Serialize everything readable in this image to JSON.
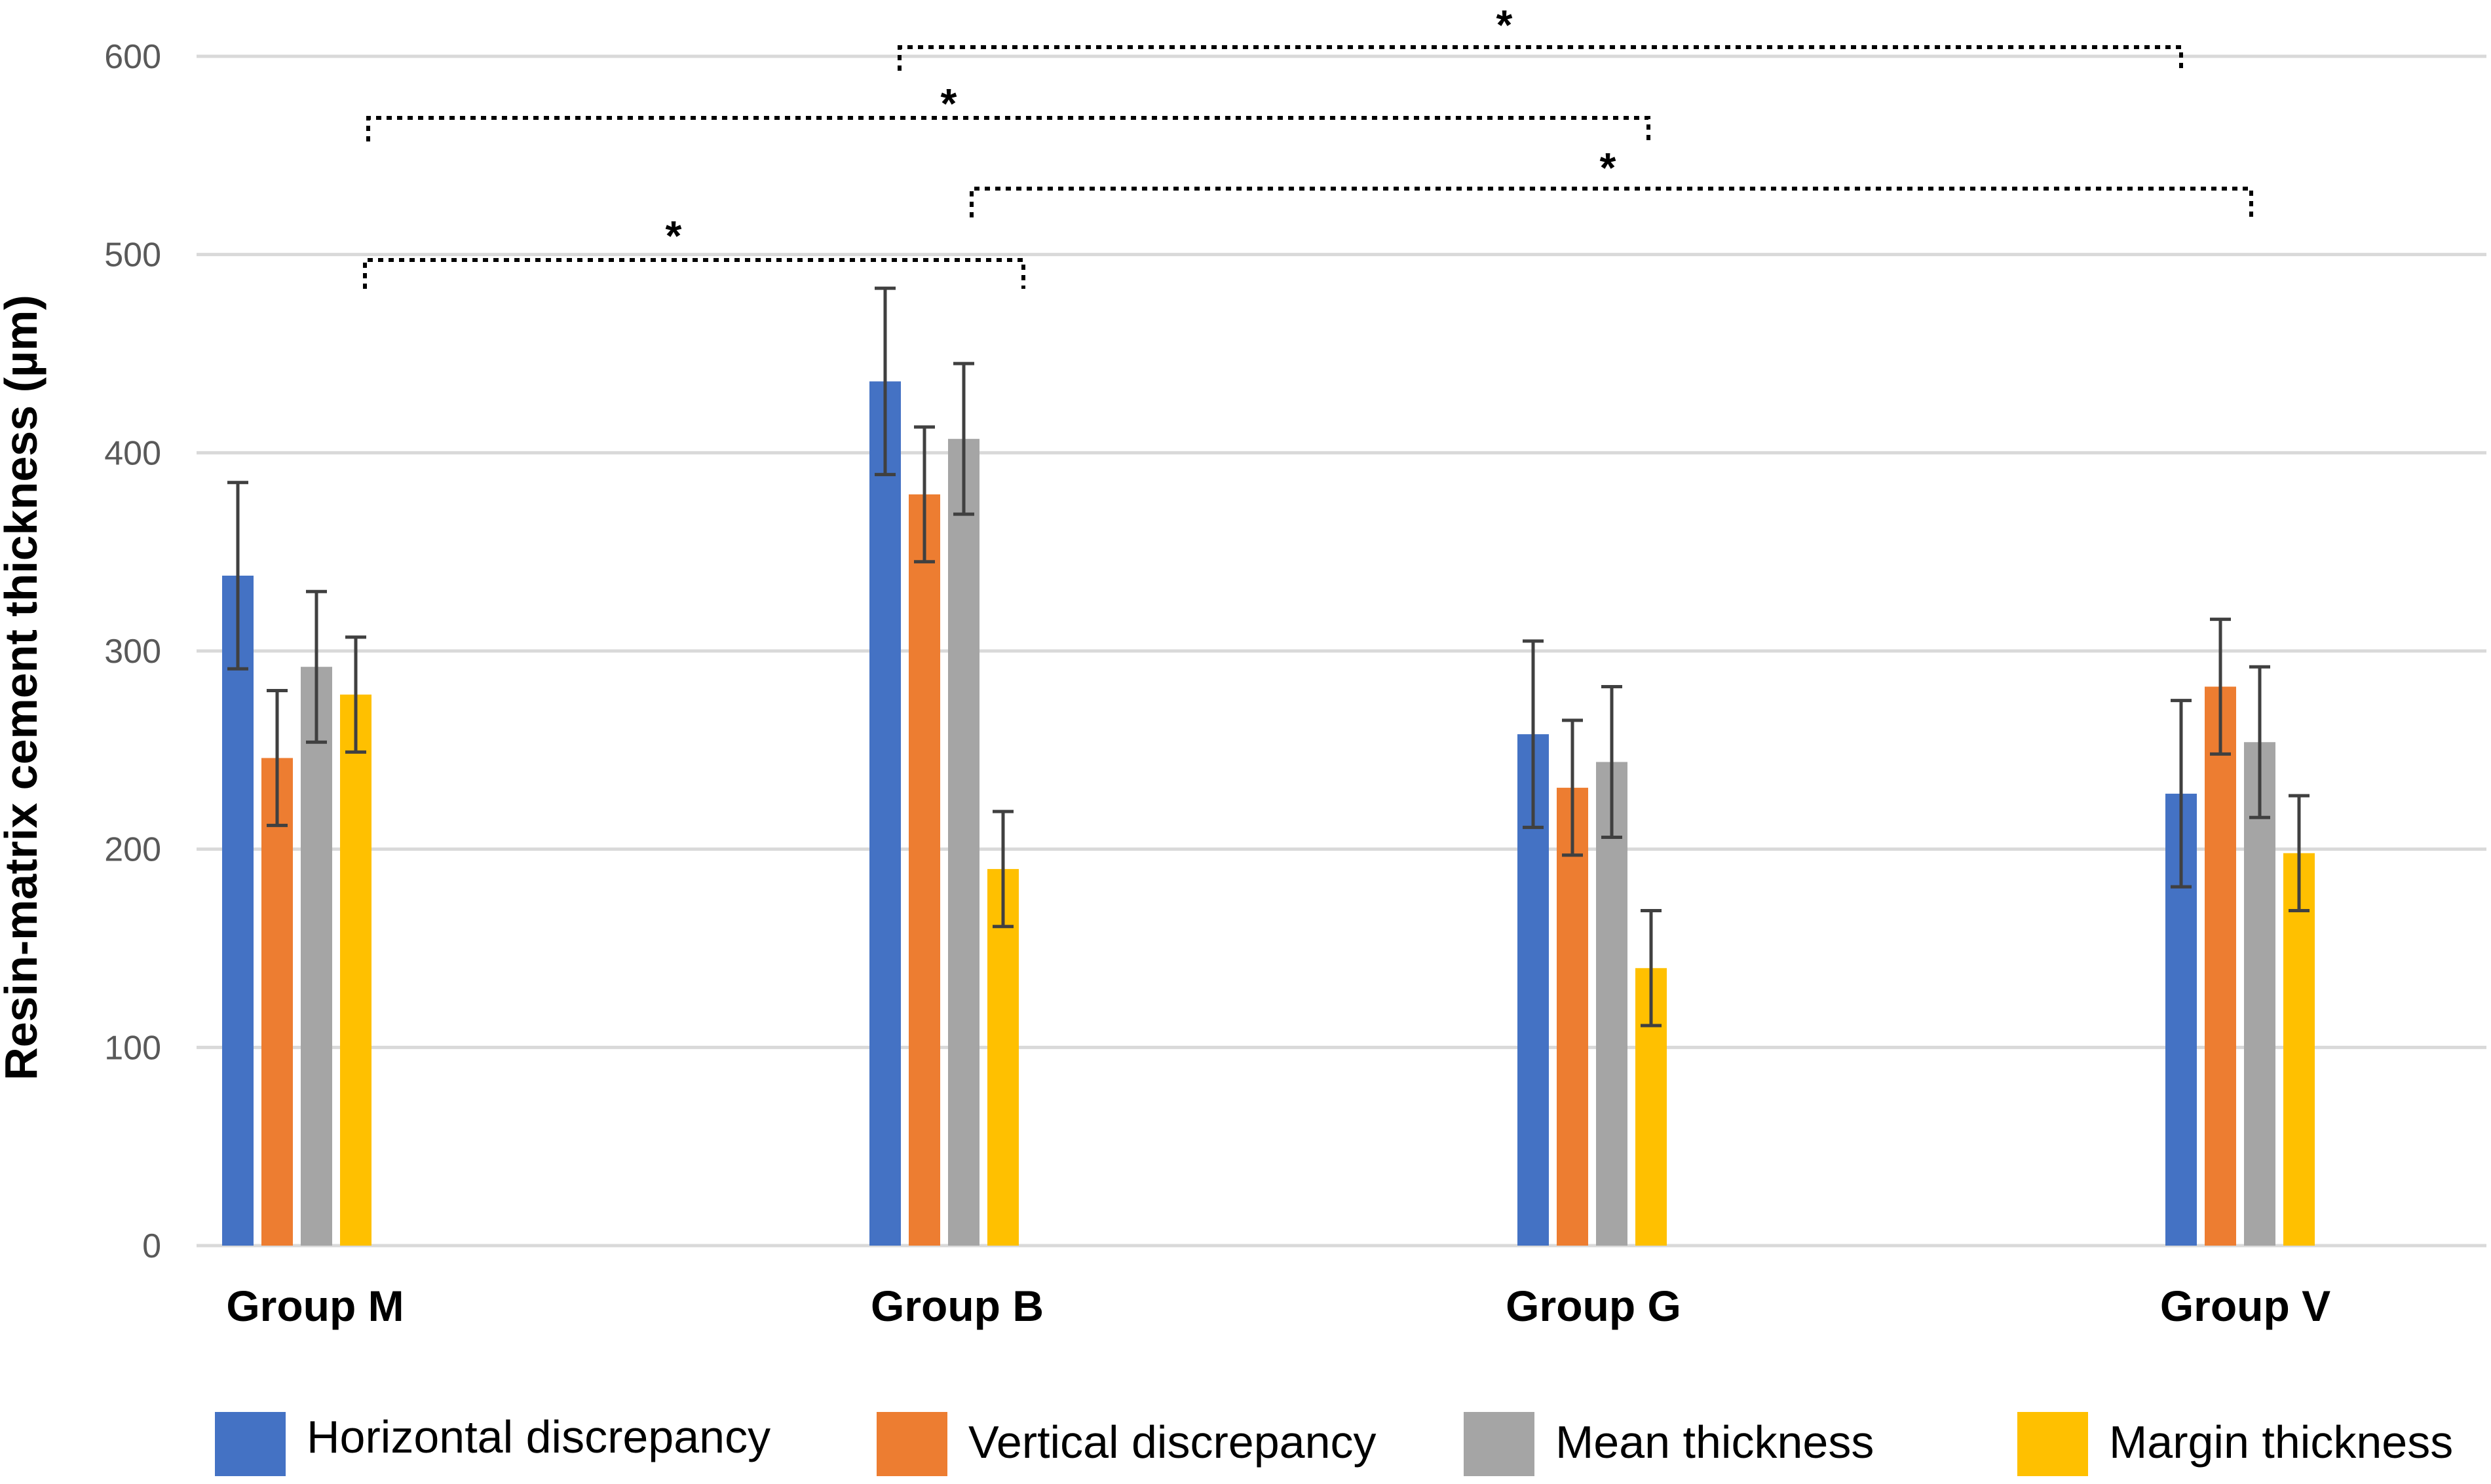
{
  "chart_data": {
    "type": "bar",
    "title": "",
    "xlabel": "",
    "ylabel": "Resin-matrix cement thickness (µm)",
    "ylim": [
      0,
      600
    ],
    "yticks": [
      0,
      100,
      200,
      300,
      400,
      500,
      600
    ],
    "grid": true,
    "legend_position": "bottom",
    "categories": [
      "Group M",
      "Group B",
      "Group G",
      "Group V"
    ],
    "series": [
      {
        "name": "Horizontal discrepancy",
        "color": "#4472C4",
        "values": [
          338,
          436,
          258,
          228
        ],
        "errors": [
          47,
          47,
          47,
          47
        ]
      },
      {
        "name": "Vertical discrepancy",
        "color": "#ED7D31",
        "values": [
          246,
          379,
          231,
          282
        ],
        "errors": [
          34,
          34,
          34,
          34
        ]
      },
      {
        "name": "Mean thickness",
        "color": "#A5A5A5",
        "values": [
          292,
          407,
          244,
          254
        ],
        "errors": [
          38,
          38,
          38,
          38
        ]
      },
      {
        "name": "Margin thickness",
        "color": "#FFC000",
        "values": [
          278,
          190,
          140,
          198
        ],
        "errors": [
          29,
          29,
          29,
          29
        ]
      }
    ],
    "significance": [
      {
        "from": "Group M",
        "to": "Group B",
        "label": "*"
      },
      {
        "from": "Group M",
        "to": "Group G",
        "label": "*"
      },
      {
        "from": "Group B",
        "to": "Group V",
        "label": "*"
      },
      {
        "from": "Group B",
        "to": "Group V",
        "label": "*"
      }
    ]
  }
}
